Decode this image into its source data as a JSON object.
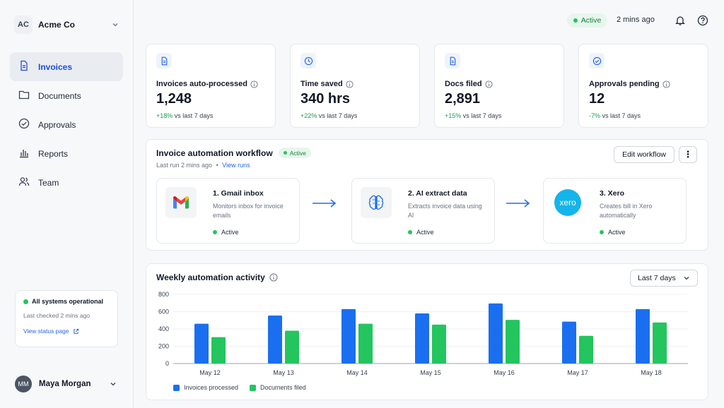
{
  "org": {
    "initials": "AC",
    "name": "Acme Co"
  },
  "nav": [
    {
      "label": "Invoices",
      "icon": "document-icon",
      "active": true
    },
    {
      "label": "Documents",
      "icon": "folder-icon",
      "active": false
    },
    {
      "label": "Approvals",
      "icon": "check-circle-icon",
      "active": false
    },
    {
      "label": "Reports",
      "icon": "bar-chart-icon",
      "active": false
    },
    {
      "label": "Team",
      "icon": "users-icon",
      "active": false
    }
  ],
  "system_status": {
    "title": "All systems operational",
    "checked": "Last checked 2 mins ago",
    "link": "View status page"
  },
  "user": {
    "initials": "MM",
    "name": "Maya Morgan"
  },
  "topbar": {
    "status": "Active",
    "time": "2 mins ago"
  },
  "stats": [
    {
      "icon": "document-icon",
      "label": "Invoices auto-processed",
      "value": "1,248",
      "change": "+18%",
      "suffix": "vs last 7 days"
    },
    {
      "icon": "clock-icon",
      "label": "Time saved",
      "value": "340 hrs",
      "change": "+22%",
      "suffix": "vs last 7 days"
    },
    {
      "icon": "document-icon",
      "label": "Docs filed",
      "value": "2,891",
      "change": "+15%",
      "suffix": "vs last 7 days"
    },
    {
      "icon": "check-circle-icon",
      "label": "Approvals pending",
      "value": "12",
      "change": "-7%",
      "suffix": "vs last 7 days"
    }
  ],
  "workflow": {
    "title": "Invoice automation workflow",
    "badge": "Active",
    "last_run": "Last run 2 mins ago",
    "separator": "•",
    "view_runs": "View runs",
    "edit_label": "Edit workflow",
    "more_label": "⋮",
    "steps": [
      {
        "icon": "gmail-icon",
        "title": "1. Gmail inbox",
        "desc": "Monitors inbox for invoice emails",
        "status": "Active"
      },
      {
        "icon": "brain-icon",
        "title": "2. AI extract data",
        "desc": "Extracts invoice data using AI",
        "status": "Active"
      },
      {
        "icon": "xero-icon",
        "title": "3. Xero",
        "desc": "Creates bill in Xero automatically",
        "status": "Active",
        "logo_text": "xero"
      }
    ]
  },
  "activity": {
    "title": "Weekly automation activity",
    "range": "Last 7 days"
  },
  "colors": {
    "blue": "#1a6ff0",
    "green": "#22c55e",
    "accent": "#2563eb"
  },
  "chart_data": {
    "type": "bar",
    "categories": [
      "May 12",
      "May 13",
      "May 14",
      "May 15",
      "May 16",
      "May 17",
      "May 18"
    ],
    "series": [
      {
        "name": "Invoices processed",
        "values": [
          460,
          555,
          630,
          580,
          695,
          485,
          630
        ]
      },
      {
        "name": "Documents filed",
        "values": [
          305,
          380,
          460,
          450,
          505,
          320,
          475
        ]
      }
    ],
    "ylim": [
      0,
      800
    ],
    "yticks": [
      0,
      200,
      400,
      600,
      800
    ],
    "grid": true,
    "legend": "bottom-left"
  }
}
